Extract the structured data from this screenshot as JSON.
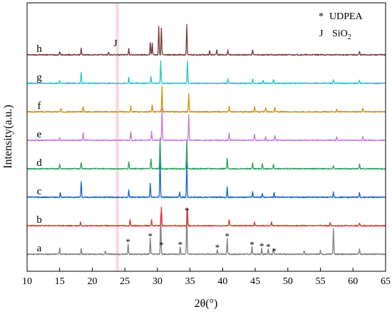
{
  "chart_data": {
    "type": "line",
    "xlabel": "2θ(°)",
    "ylabel": "Intensity(a.u.)",
    "xlim": [
      10,
      65
    ],
    "x_ticks": [
      10,
      15,
      20,
      25,
      30,
      35,
      40,
      45,
      50,
      55,
      60,
      65
    ],
    "y_ticks_shown": false,
    "grid": false,
    "legend": {
      "placement": "top-right",
      "entries": [
        {
          "symbol": "*",
          "label": "UDPEA"
        },
        {
          "symbol": "J",
          "label": "SiO",
          "subscript": "2"
        }
      ]
    },
    "highlight_band_x": [
      23.6,
      24.1
    ],
    "highlight_band_color": "#f4d6d6",
    "series": [
      {
        "name": "a",
        "color": "#7f7f7f",
        "offset": 0,
        "noise_seed": 11,
        "peaks": [
          [
            15.0,
            9
          ],
          [
            18.3,
            8
          ],
          [
            22.0,
            4
          ],
          [
            25.5,
            14
          ],
          [
            28.9,
            22
          ],
          [
            30.5,
            55
          ],
          [
            33.5,
            10
          ],
          [
            34.5,
            62
          ],
          [
            39.2,
            6
          ],
          [
            40.7,
            22
          ],
          [
            44.5,
            10
          ],
          [
            46.0,
            8
          ],
          [
            47.0,
            7
          ],
          [
            47.8,
            7
          ],
          [
            52.5,
            5
          ],
          [
            55.0,
            5
          ],
          [
            57.0,
            35
          ],
          [
            61.0,
            8
          ]
        ]
      },
      {
        "name": "b",
        "color": "#e8353a",
        "offset": 1,
        "noise_seed": 23,
        "peaks": [
          [
            18.2,
            5
          ],
          [
            25.8,
            9
          ],
          [
            29.1,
            8
          ],
          [
            30.6,
            26
          ],
          [
            34.6,
            24
          ],
          [
            41.0,
            9
          ],
          [
            44.9,
            5
          ],
          [
            47.5,
            5
          ],
          [
            56.5,
            4
          ],
          [
            61.0,
            4
          ]
        ]
      },
      {
        "name": "c",
        "color": "#1967c9",
        "offset": 2,
        "noise_seed": 37,
        "peaks": [
          [
            15.1,
            7
          ],
          [
            18.3,
            22
          ],
          [
            25.6,
            10
          ],
          [
            28.9,
            20
          ],
          [
            30.4,
            60
          ],
          [
            33.4,
            8
          ],
          [
            34.5,
            50
          ],
          [
            40.7,
            14
          ],
          [
            44.6,
            8
          ],
          [
            46.1,
            6
          ],
          [
            47.9,
            6
          ],
          [
            57.0,
            7
          ],
          [
            61.0,
            6
          ]
        ]
      },
      {
        "name": "d",
        "color": "#2aa35e",
        "offset": 3,
        "noise_seed": 41,
        "peaks": [
          [
            15.0,
            6
          ],
          [
            18.3,
            9
          ],
          [
            25.6,
            10
          ],
          [
            29.0,
            14
          ],
          [
            30.4,
            42
          ],
          [
            34.5,
            40
          ],
          [
            40.7,
            14
          ],
          [
            44.6,
            8
          ],
          [
            46.1,
            7
          ],
          [
            47.8,
            6
          ],
          [
            57.0,
            5
          ],
          [
            61.0,
            6
          ]
        ]
      },
      {
        "name": "e",
        "color": "#c777e0",
        "offset": 4,
        "noise_seed": 53,
        "peaks": [
          [
            15.0,
            4
          ],
          [
            18.6,
            10
          ],
          [
            25.9,
            12
          ],
          [
            29.1,
            12
          ],
          [
            30.7,
            44
          ],
          [
            34.8,
            36
          ],
          [
            41.0,
            10
          ],
          [
            44.9,
            9
          ],
          [
            46.6,
            6
          ],
          [
            48.0,
            7
          ],
          [
            57.5,
            5
          ],
          [
            61.5,
            5
          ]
        ]
      },
      {
        "name": "f",
        "color": "#d4930c",
        "offset": 5,
        "noise_seed": 67,
        "peaks": [
          [
            15.2,
            4
          ],
          [
            18.6,
            8
          ],
          [
            25.9,
            8
          ],
          [
            29.2,
            10
          ],
          [
            30.7,
            36
          ],
          [
            34.8,
            26
          ],
          [
            41.0,
            7
          ],
          [
            44.9,
            8
          ],
          [
            46.6,
            5
          ],
          [
            48.0,
            6
          ],
          [
            57.5,
            4
          ],
          [
            61.5,
            5
          ]
        ]
      },
      {
        "name": "g",
        "color": "#26c6d0",
        "offset": 6,
        "noise_seed": 79,
        "peaks": [
          [
            15.0,
            4
          ],
          [
            18.3,
            16
          ],
          [
            25.6,
            8
          ],
          [
            29.0,
            10
          ],
          [
            30.5,
            32
          ],
          [
            34.6,
            32
          ],
          [
            40.8,
            7
          ],
          [
            44.6,
            7
          ],
          [
            46.2,
            5
          ],
          [
            47.8,
            5
          ],
          [
            57.0,
            5
          ],
          [
            61.0,
            4
          ]
        ]
      },
      {
        "name": "h",
        "color": "#7a3a38",
        "offset": 7,
        "noise_seed": 97,
        "peaks": [
          [
            15.0,
            5
          ],
          [
            18.3,
            9
          ],
          [
            22.5,
            4
          ],
          [
            25.6,
            9
          ],
          [
            28.9,
            17
          ],
          [
            29.2,
            16
          ],
          [
            30.2,
            40
          ],
          [
            30.6,
            38
          ],
          [
            34.5,
            42
          ],
          [
            38.0,
            6
          ],
          [
            39.1,
            7
          ],
          [
            40.8,
            7
          ],
          [
            44.6,
            7
          ],
          [
            61.0,
            5
          ]
        ]
      }
    ],
    "udpea_markers_on_a": [
      25.5,
      28.9,
      30.6,
      33.5,
      34.5,
      39.2,
      40.7,
      44.5,
      46.0,
      47.0,
      47.9
    ],
    "sio2_marker_on_h": 24.0
  }
}
